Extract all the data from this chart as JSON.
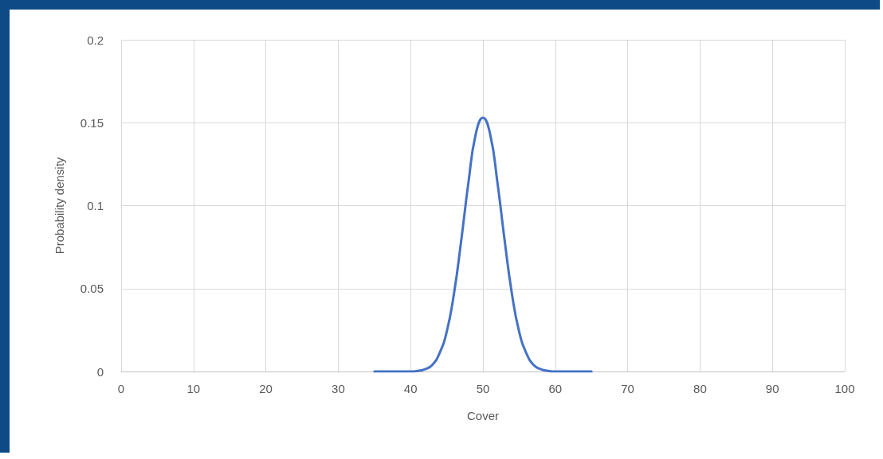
{
  "chart_data": {
    "type": "line",
    "xlabel": "Cover",
    "ylabel": "Probability density",
    "x": [
      35,
      38,
      40,
      41,
      42,
      43,
      44,
      45,
      46,
      47,
      48,
      49,
      50,
      51,
      52,
      53,
      54,
      55,
      56,
      57,
      58,
      59,
      60,
      62,
      65
    ],
    "series": [
      {
        "color": "#4472c4",
        "values": [
          0,
          0,
          0,
          0.0004,
          0.0014,
          0.004,
          0.011,
          0.024,
          0.047,
          0.079,
          0.114,
          0.143,
          0.153,
          0.143,
          0.114,
          0.079,
          0.047,
          0.024,
          0.011,
          0.004,
          0.0014,
          0.0004,
          0,
          0,
          0
        ]
      }
    ],
    "xlim": [
      0,
      100
    ],
    "xticks": [
      0,
      10,
      20,
      30,
      40,
      50,
      60,
      70,
      80,
      90,
      100
    ],
    "ylim": [
      0,
      0.2
    ],
    "yticks": [
      0,
      0.05,
      0.1,
      0.15,
      0.2
    ],
    "grid": true
  }
}
